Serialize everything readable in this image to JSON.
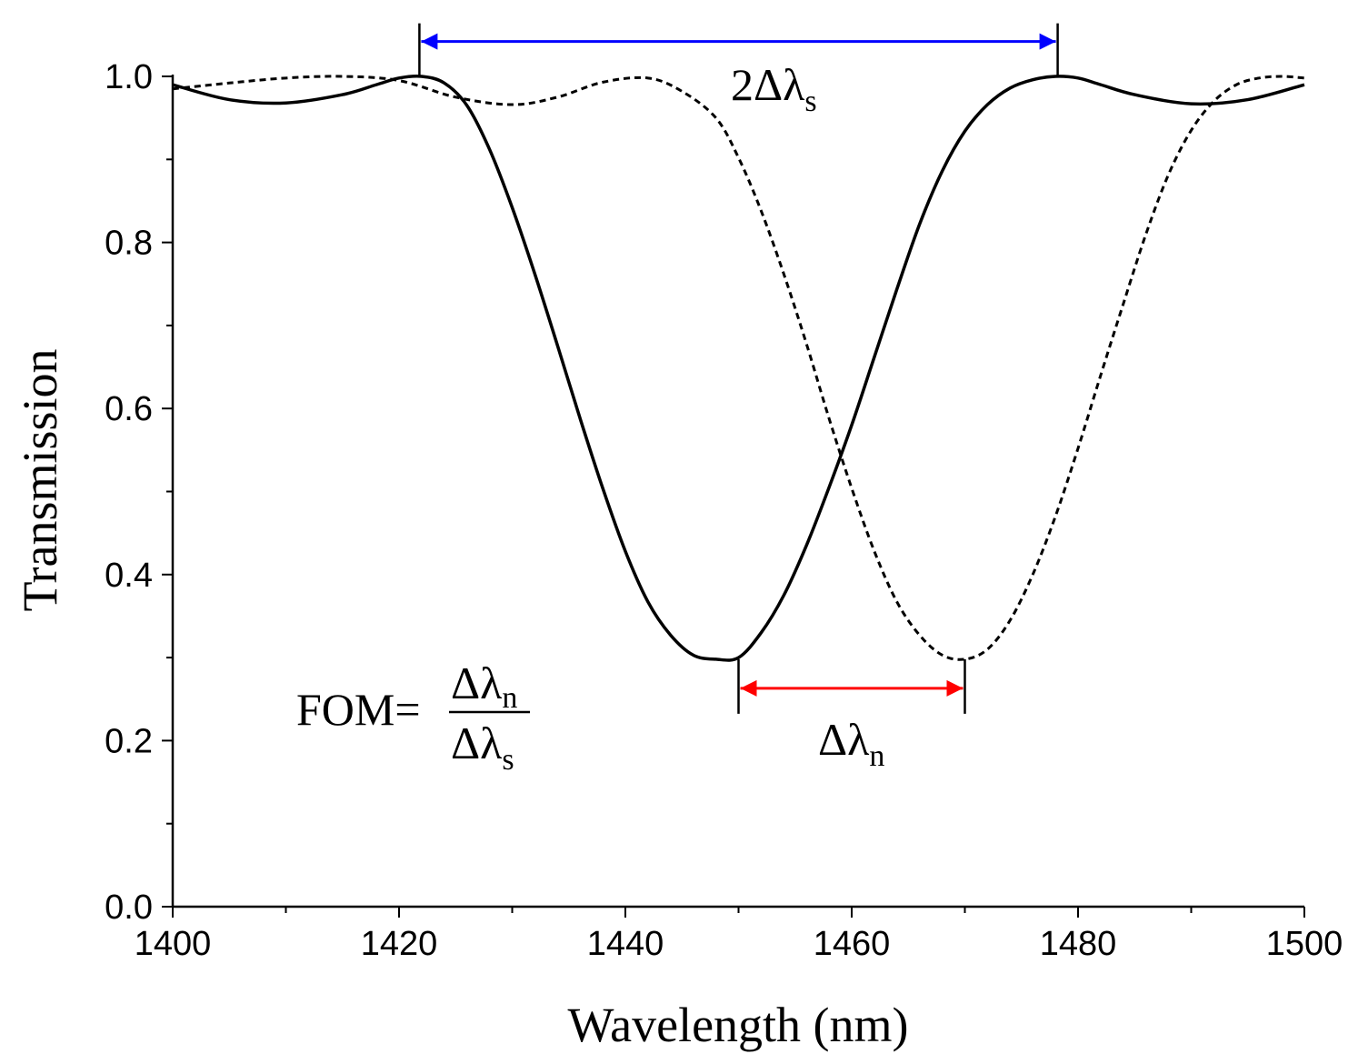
{
  "chart_data": {
    "type": "line",
    "title": "",
    "xlabel": "Wavelength (nm)",
    "ylabel": "Transmission",
    "xlim": [
      1400,
      1500
    ],
    "ylim": [
      0.0,
      1.0
    ],
    "xticks": [
      1400,
      1420,
      1440,
      1460,
      1480,
      1500
    ],
    "xtick_labels": [
      "1400",
      "1420",
      "1440",
      "1460",
      "1480",
      "1500"
    ],
    "yticks": [
      0.0,
      0.2,
      0.4,
      0.6,
      0.8,
      1.0
    ],
    "ytick_labels": [
      "0.0",
      "0.2",
      "0.4",
      "0.6",
      "0.8",
      "1.0"
    ],
    "grid": false,
    "series": [
      {
        "name": "solid",
        "style": "solid",
        "color": "#000000",
        "x": [
          1400,
          1405,
          1410,
          1415,
          1418,
          1420,
          1422,
          1424,
          1426,
          1428,
          1430,
          1432,
          1434,
          1436,
          1438,
          1440,
          1442,
          1444,
          1446,
          1448,
          1450,
          1452,
          1454,
          1456,
          1458,
          1460,
          1462,
          1464,
          1466,
          1468,
          1470,
          1472,
          1474,
          1476,
          1478,
          1480,
          1482,
          1485,
          1490,
          1495,
          1500
        ],
        "y": [
          0.99,
          0.972,
          0.968,
          0.978,
          0.99,
          0.998,
          1.0,
          0.992,
          0.965,
          0.912,
          0.842,
          0.762,
          0.676,
          0.588,
          0.504,
          0.428,
          0.367,
          0.327,
          0.303,
          0.298,
          0.3,
          0.33,
          0.375,
          0.435,
          0.505,
          0.58,
          0.662,
          0.744,
          0.822,
          0.886,
          0.934,
          0.966,
          0.986,
          0.996,
          1.0,
          0.998,
          0.99,
          0.978,
          0.967,
          0.972,
          0.99
        ]
      },
      {
        "name": "dashed",
        "style": "dashed",
        "color": "#000000",
        "x": [
          1400,
          1405,
          1410,
          1415,
          1420,
          1425,
          1430,
          1434,
          1438,
          1442,
          1445,
          1448,
          1450,
          1452,
          1454,
          1456,
          1458,
          1460,
          1462,
          1464,
          1466,
          1468,
          1470,
          1472,
          1474,
          1476,
          1478,
          1480,
          1482,
          1484,
          1486,
          1488,
          1490,
          1492,
          1494,
          1496,
          1498,
          1500
        ],
        "y": [
          0.985,
          0.992,
          0.998,
          1.0,
          0.995,
          0.975,
          0.966,
          0.975,
          0.993,
          0.998,
          0.982,
          0.95,
          0.902,
          0.838,
          0.762,
          0.678,
          0.588,
          0.504,
          0.428,
          0.367,
          0.327,
          0.303,
          0.298,
          0.31,
          0.345,
          0.4,
          0.47,
          0.552,
          0.64,
          0.726,
          0.81,
          0.882,
          0.935,
          0.97,
          0.99,
          0.998,
          1.0,
          0.998
        ]
      }
    ],
    "arrows": [
      {
        "name": "2Δλs",
        "color": "#0000ff",
        "x_start": 1421.8,
        "x_end": 1478.2,
        "y": 1.042
      },
      {
        "name": "Δλn",
        "color": "#ff0000",
        "x_start": 1450.0,
        "x_end": 1470.0,
        "y": 0.263
      }
    ]
  },
  "annotations": {
    "two_delta_lambda_s": {
      "main": "2Δλ",
      "sub": "s"
    },
    "delta_lambda_n": {
      "main": "Δλ",
      "sub": "n"
    },
    "fom": {
      "prefix": "FOM=",
      "numerator": {
        "main": "Δλ",
        "sub": "n"
      },
      "denominator": {
        "main": "Δλ",
        "sub": "s"
      }
    }
  }
}
